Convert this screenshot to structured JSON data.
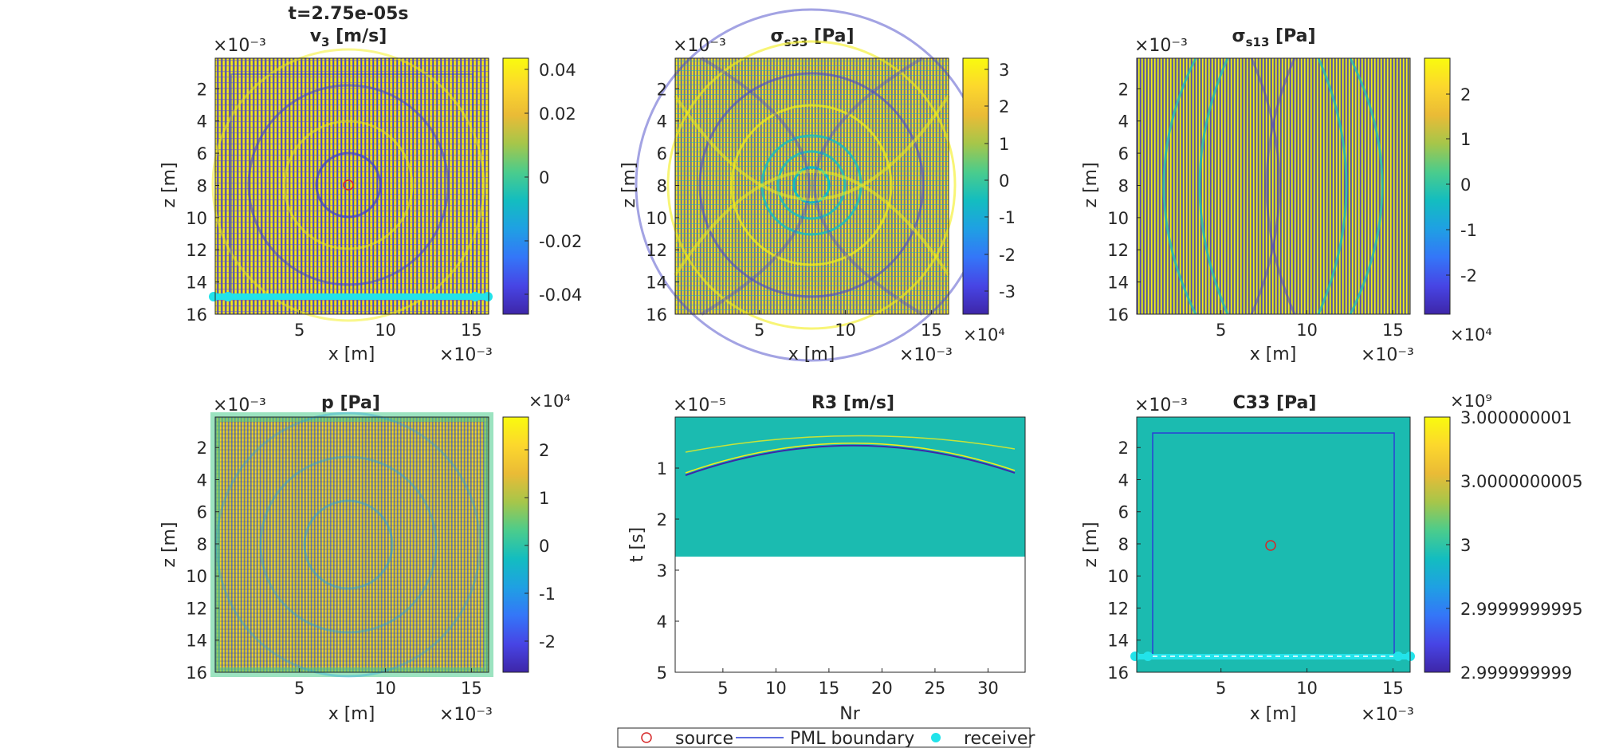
{
  "figure": {
    "time_label": "t=2.75e-05s"
  },
  "colormap": {
    "name": "parula",
    "stops": [
      "#3e26a8",
      "#4745e5",
      "#3476f8",
      "#1fa0e3",
      "#13bdc0",
      "#4bcc8c",
      "#a6c64a",
      "#eabb36",
      "#fcd72d",
      "#f9fb0e"
    ]
  },
  "chart_data": [
    {
      "type": "heatmap",
      "title": "v₃ [m/s]",
      "xlabel": "x [m]",
      "ylabel": "z [m]",
      "x_exponent": "×10⁻³",
      "y_exponent": "×10⁻³",
      "xticks": [
        "5",
        "10",
        "15"
      ],
      "yticks": [
        "2",
        "4",
        "6",
        "8",
        "10",
        "12",
        "14",
        "16"
      ],
      "colorbar_exponent": "",
      "colorbar_ticks": [
        "0.04",
        "0.02",
        "0",
        "-0.02",
        "-0.04"
      ],
      "clim": [
        -0.045,
        0.045
      ],
      "overlays": [
        "source",
        "pml-boundary",
        "receivers"
      ]
    },
    {
      "type": "heatmap",
      "title": "σs33 [Pa]",
      "xlabel": "x [m]",
      "ylabel": "z [m]",
      "x_exponent": "×10⁻³",
      "y_exponent": "×10⁻³",
      "xticks": [
        "5",
        "10",
        "15"
      ],
      "yticks": [
        "2",
        "4",
        "6",
        "8",
        "10",
        "12",
        "14",
        "16"
      ],
      "colorbar_exponent": "×10⁴",
      "colorbar_ticks": [
        "3",
        "2",
        "1",
        "0",
        "-1",
        "-2",
        "-3"
      ],
      "clim": [
        -3.4,
        3.4
      ]
    },
    {
      "type": "heatmap",
      "title": "σs13 [Pa]",
      "xlabel": "x [m]",
      "ylabel": "z [m]",
      "x_exponent": "×10⁻³",
      "y_exponent": "×10⁻³",
      "xticks": [
        "5",
        "10",
        "15"
      ],
      "yticks": [
        "2",
        "4",
        "6",
        "8",
        "10",
        "12",
        "14",
        "16"
      ],
      "colorbar_exponent": "×10⁴",
      "colorbar_ticks": [
        "2",
        "1",
        "0",
        "-1",
        "-2"
      ],
      "clim": [
        -2.8,
        2.8
      ]
    },
    {
      "type": "heatmap",
      "title": "p [Pa]",
      "xlabel": "x [m]",
      "ylabel": "z [m]",
      "x_exponent": "×10⁻³",
      "y_exponent": "×10⁻³",
      "xticks": [
        "5",
        "10",
        "15"
      ],
      "yticks": [
        "2",
        "4",
        "6",
        "8",
        "10",
        "12",
        "14",
        "16"
      ],
      "colorbar_exponent": "×10⁴",
      "colorbar_ticks": [
        "2",
        "1",
        "0",
        "-1",
        "-2"
      ],
      "clim": [
        -2.2,
        2.2
      ]
    },
    {
      "type": "heatmap",
      "title": "R3 [m/s]",
      "xlabel": "Nr",
      "ylabel": "t [s]",
      "x_exponent": "",
      "y_exponent": "×10⁻⁵",
      "xticks": [
        "5",
        "10",
        "15",
        "20",
        "25",
        "30"
      ],
      "yticks": [
        "1",
        "2",
        "3",
        "4",
        "5"
      ],
      "xlim": [
        0.5,
        33.5
      ],
      "ylim": [
        0,
        5
      ],
      "filled_until_t": 2.75
    },
    {
      "type": "heatmap",
      "title": "C33 [Pa]",
      "xlabel": "x [m]",
      "ylabel": "z [m]",
      "x_exponent": "×10⁻³",
      "y_exponent": "×10⁻³",
      "xticks": [
        "5",
        "10",
        "15"
      ],
      "yticks": [
        "2",
        "4",
        "6",
        "8",
        "10",
        "12",
        "14",
        "16"
      ],
      "colorbar_exponent": "×10⁹",
      "colorbar_ticks": [
        "3.000000001",
        "3.0000000005",
        "3",
        "2.9999999995",
        "2.999999999"
      ],
      "clim": [
        2.999999999,
        3.000000001
      ],
      "uniform_value": 3,
      "overlays": [
        "source",
        "pml-boundary",
        "receivers"
      ]
    }
  ],
  "legend": {
    "items": [
      {
        "label": "source",
        "color": "#d62728"
      },
      {
        "label": "PML boundary",
        "color": "#2b3fd6"
      },
      {
        "label": "receiver",
        "color": "#22e3ea"
      }
    ]
  }
}
